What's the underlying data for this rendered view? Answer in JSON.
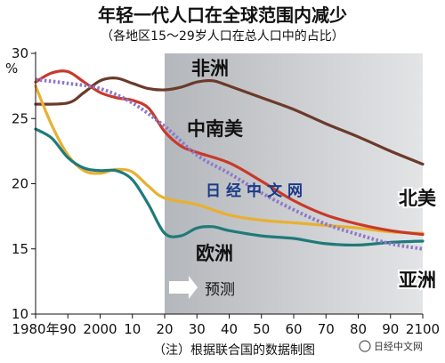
{
  "chart_data": {
    "type": "line",
    "title": "年轻一代人口在全球范围内减少",
    "subtitle": "（各地区15～29岁人口在总人口中的占比）",
    "y_unit": "%",
    "xlim": [
      1980,
      2100
    ],
    "ylim": [
      10,
      30
    ],
    "x_ticks": [
      1980,
      1990,
      2000,
      2010,
      2020,
      2030,
      2040,
      2050,
      2060,
      2070,
      2080,
      2090,
      2100
    ],
    "x_tick_labels": [
      "1980年",
      "90",
      "2000",
      "10",
      "20",
      "30",
      "40",
      "50",
      "60",
      "70",
      "80",
      "90",
      "2100"
    ],
    "y_ticks": [
      10,
      15,
      20,
      25,
      30
    ],
    "y_tick_labels": [
      "10",
      "15",
      "20",
      "25",
      "30"
    ],
    "forecast_start": 2020,
    "forecast_label": "预测",
    "note": "（注）根据联合国的数据制图",
    "series": [
      {
        "name": "非洲",
        "color": "#6b3a2a",
        "style": "solid",
        "points": [
          [
            1980,
            26.1
          ],
          [
            1990,
            26.2
          ],
          [
            1995,
            27.0
          ],
          [
            2000,
            27.9
          ],
          [
            2005,
            28.1
          ],
          [
            2010,
            27.7
          ],
          [
            2015,
            27.3
          ],
          [
            2020,
            27.2
          ],
          [
            2025,
            27.4
          ],
          [
            2030,
            27.8
          ],
          [
            2035,
            27.9
          ],
          [
            2040,
            27.5
          ],
          [
            2050,
            26.6
          ],
          [
            2060,
            25.7
          ],
          [
            2070,
            24.6
          ],
          [
            2080,
            23.6
          ],
          [
            2090,
            22.5
          ],
          [
            2100,
            21.5
          ]
        ]
      },
      {
        "name": "中南美",
        "color": "#c8392a",
        "style": "solid",
        "points": [
          [
            1980,
            27.8
          ],
          [
            1985,
            28.5
          ],
          [
            1990,
            28.6
          ],
          [
            1995,
            27.8
          ],
          [
            2000,
            27.0
          ],
          [
            2005,
            26.6
          ],
          [
            2010,
            26.4
          ],
          [
            2015,
            25.8
          ],
          [
            2020,
            24.0
          ],
          [
            2025,
            22.9
          ],
          [
            2030,
            22.4
          ],
          [
            2040,
            21.6
          ],
          [
            2050,
            20.2
          ],
          [
            2060,
            18.7
          ],
          [
            2070,
            17.6
          ],
          [
            2080,
            16.9
          ],
          [
            2090,
            16.4
          ],
          [
            2100,
            16.1
          ]
        ]
      },
      {
        "name": "亚洲",
        "color": "#8c78c8",
        "style": "dotted",
        "points": [
          [
            1980,
            28.0
          ],
          [
            1990,
            27.7
          ],
          [
            2000,
            27.3
          ],
          [
            2010,
            26.2
          ],
          [
            2020,
            24.4
          ],
          [
            2030,
            22.2
          ],
          [
            2040,
            20.8
          ],
          [
            2050,
            19.3
          ],
          [
            2060,
            18.0
          ],
          [
            2070,
            16.9
          ],
          [
            2080,
            16.1
          ],
          [
            2090,
            15.4
          ],
          [
            2100,
            15.0
          ]
        ]
      },
      {
        "name": "北美",
        "color": "#e8b030",
        "style": "solid",
        "points": [
          [
            1980,
            27.5
          ],
          [
            1985,
            24.5
          ],
          [
            1990,
            22.2
          ],
          [
            1995,
            21.0
          ],
          [
            2000,
            20.8
          ],
          [
            2005,
            21.1
          ],
          [
            2010,
            20.9
          ],
          [
            2015,
            19.8
          ],
          [
            2020,
            18.9
          ],
          [
            2030,
            18.4
          ],
          [
            2040,
            17.6
          ],
          [
            2050,
            17.2
          ],
          [
            2060,
            17.0
          ],
          [
            2070,
            16.8
          ],
          [
            2080,
            16.6
          ],
          [
            2090,
            16.3
          ],
          [
            2100,
            16.2
          ]
        ]
      },
      {
        "name": "欧洲",
        "color": "#1f7a7a",
        "style": "solid",
        "points": [
          [
            1980,
            24.2
          ],
          [
            1985,
            23.5
          ],
          [
            1990,
            22.0
          ],
          [
            1995,
            21.2
          ],
          [
            2000,
            21.0
          ],
          [
            2005,
            21.0
          ],
          [
            2010,
            20.3
          ],
          [
            2015,
            18.4
          ],
          [
            2020,
            16.2
          ],
          [
            2025,
            16.0
          ],
          [
            2030,
            16.6
          ],
          [
            2035,
            16.7
          ],
          [
            2040,
            16.4
          ],
          [
            2050,
            16.0
          ],
          [
            2060,
            15.8
          ],
          [
            2070,
            15.4
          ],
          [
            2080,
            15.3
          ],
          [
            2090,
            15.5
          ],
          [
            2100,
            15.6
          ]
        ]
      }
    ]
  },
  "watermark": {
    "center_text": "日经中文网",
    "corner_text": "日经中文网"
  }
}
